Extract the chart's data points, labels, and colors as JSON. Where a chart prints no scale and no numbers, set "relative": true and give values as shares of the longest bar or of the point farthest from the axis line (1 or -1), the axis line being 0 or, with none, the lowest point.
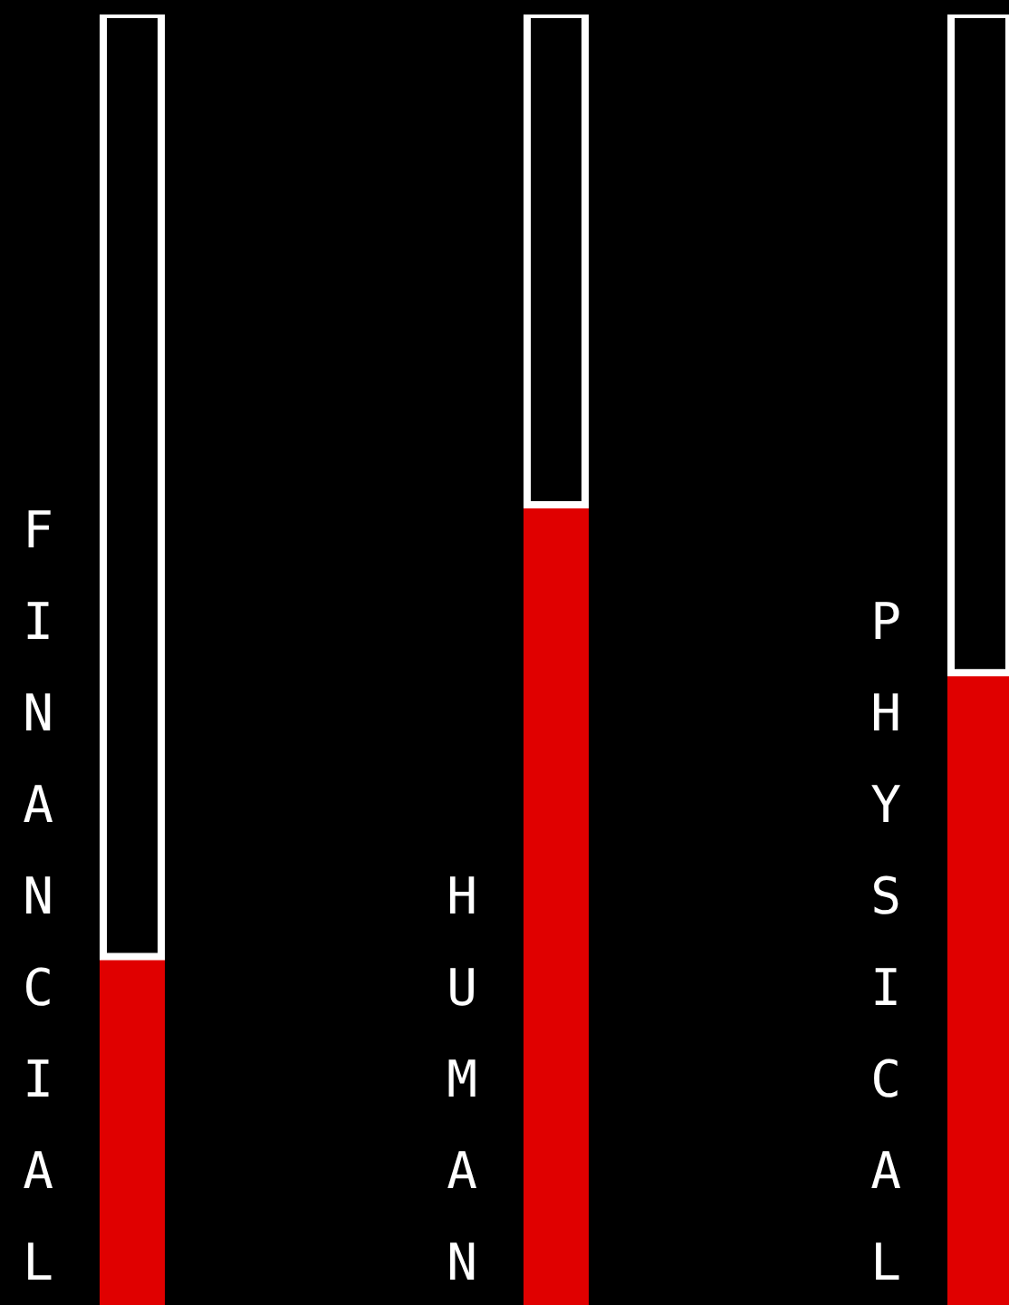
{
  "chart_data": {
    "type": "bar",
    "categories": [
      "FINANCIAL",
      "HUMAN",
      "PHYSICAL"
    ],
    "stacked": true,
    "relative": true,
    "series": [
      {
        "color": "#e00000",
        "values": [
          0.27,
          0.62,
          0.49
        ]
      },
      {
        "color": "#ffffff",
        "values": [
          0.73,
          0.38,
          0.51
        ]
      }
    ]
  }
}
